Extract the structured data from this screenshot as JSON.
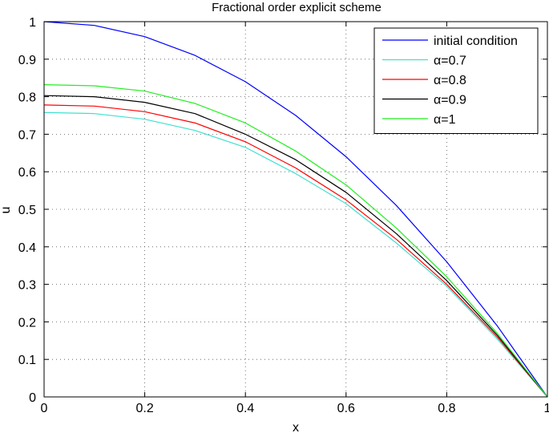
{
  "chart_data": {
    "type": "line",
    "title": "Fractional order explicit scheme",
    "xlabel": "x",
    "ylabel": "u",
    "xlim": [
      0,
      1
    ],
    "ylim": [
      0,
      1
    ],
    "xticks": [
      0,
      0.2,
      0.4,
      0.6,
      0.8,
      1
    ],
    "xtick_labels": [
      "0",
      "0.2",
      "0.4",
      "0.6",
      "0.8",
      "1"
    ],
    "yticks": [
      0,
      0.1,
      0.2,
      0.3,
      0.4,
      0.5,
      0.6,
      0.7,
      0.8,
      0.9,
      1
    ],
    "ytick_labels": [
      "0",
      "0.1",
      "0.2",
      "0.3",
      "0.4",
      "0.5",
      "0.6",
      "0.7",
      "0.8",
      "0.9",
      "1"
    ],
    "grid": true,
    "legend_position": "top-right",
    "x": [
      0,
      0.1,
      0.2,
      0.3,
      0.4,
      0.5,
      0.6,
      0.7,
      0.8,
      0.9,
      1.0
    ],
    "series": [
      {
        "name": "initial condition",
        "color": "#0000ff",
        "values": [
          1.0,
          0.99,
          0.96,
          0.91,
          0.84,
          0.75,
          0.64,
          0.51,
          0.36,
          0.19,
          0.0
        ]
      },
      {
        "name": "α=0.7",
        "color": "#40e0d0",
        "values": [
          0.758,
          0.755,
          0.74,
          0.71,
          0.665,
          0.595,
          0.515,
          0.41,
          0.295,
          0.155,
          0.0
        ]
      },
      {
        "name": "α=0.8",
        "color": "#ff0000",
        "values": [
          0.778,
          0.775,
          0.76,
          0.73,
          0.68,
          0.61,
          0.525,
          0.42,
          0.3,
          0.16,
          0.0
        ]
      },
      {
        "name": "α=0.9",
        "color": "#000000",
        "values": [
          0.803,
          0.8,
          0.785,
          0.755,
          0.7,
          0.632,
          0.545,
          0.435,
          0.31,
          0.165,
          0.0
        ]
      },
      {
        "name": "α=1",
        "color": "#22ee22",
        "values": [
          0.832,
          0.829,
          0.815,
          0.782,
          0.73,
          0.655,
          0.565,
          0.45,
          0.32,
          0.17,
          0.0
        ]
      }
    ]
  }
}
